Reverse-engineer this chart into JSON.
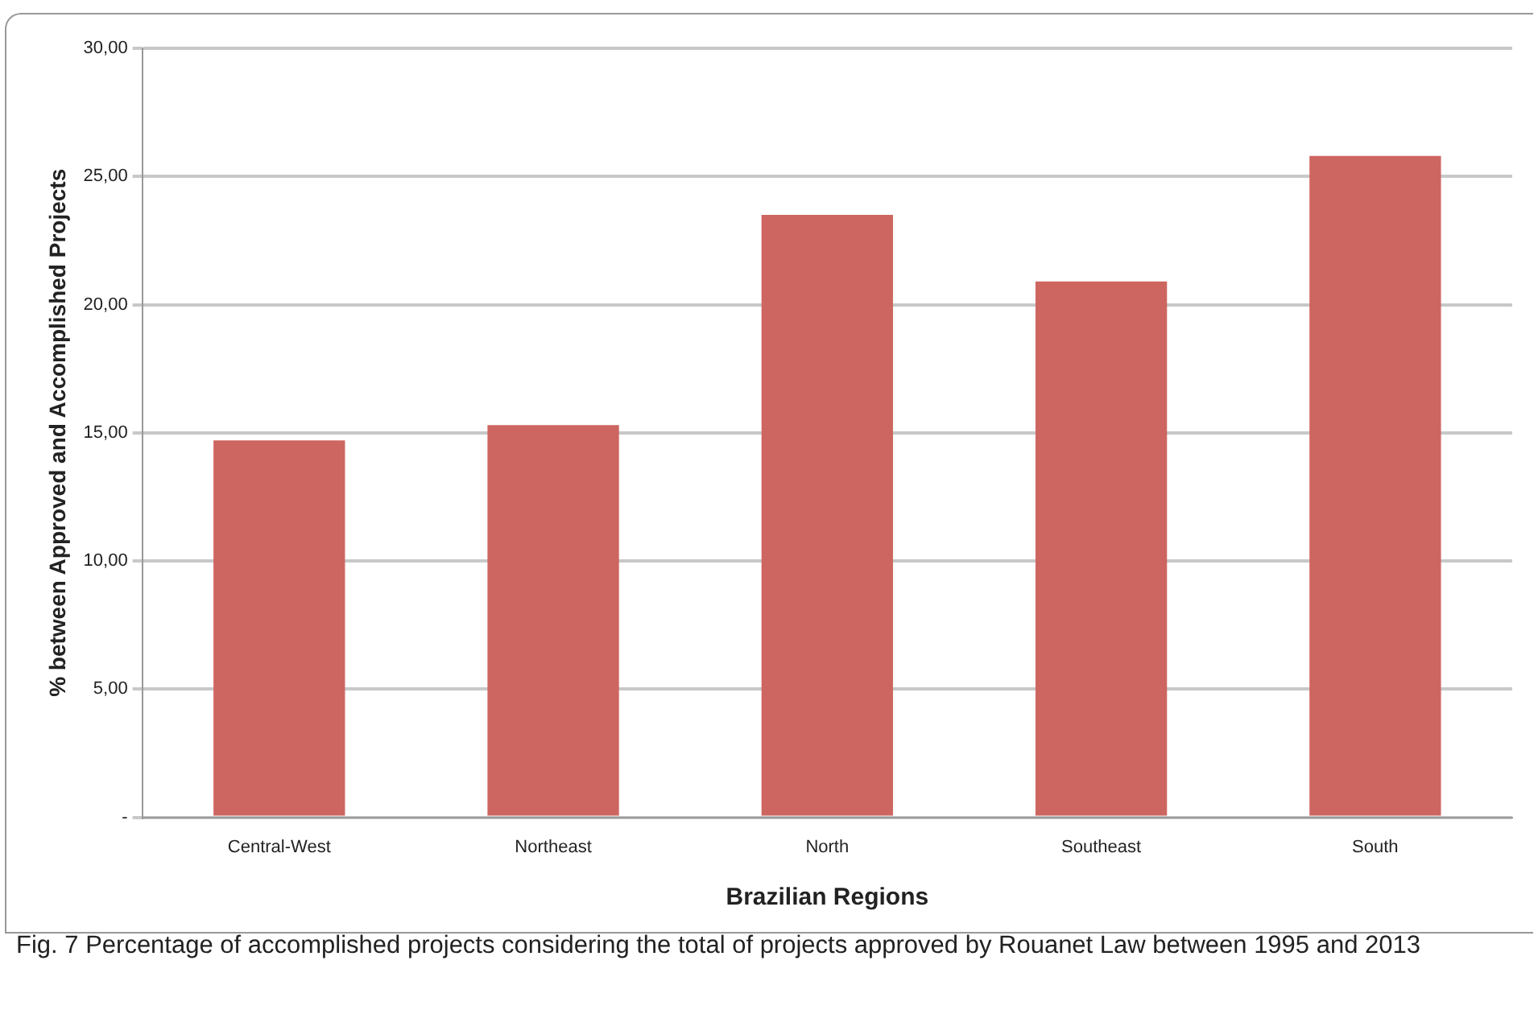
{
  "chart_data": {
    "type": "bar",
    "xlabel": "Brazilian Regions",
    "ylabel": "% between Approved and Accomplished Projects",
    "categories": [
      "Central-West",
      "Northeast",
      "North",
      "Southeast",
      "South"
    ],
    "values": [
      14.7,
      15.3,
      23.5,
      20.9,
      25.8
    ],
    "color": "#cd6660",
    "ylim": [
      0,
      30
    ],
    "yticks": [
      {
        "value": 0,
        "label": "-"
      },
      {
        "value": 5,
        "label": "5,00"
      },
      {
        "value": 10,
        "label": "10,00"
      },
      {
        "value": 15,
        "label": "15,00"
      },
      {
        "value": 20,
        "label": "20,00"
      },
      {
        "value": 25,
        "label": "25,00"
      },
      {
        "value": 30,
        "label": "30,00"
      }
    ],
    "grid": "y",
    "legend": false,
    "annotations": [
      "Fig. 7  Percentage of accomplished projects considering the total of projects approved by Rouanet Law between 1995 and 2013"
    ]
  }
}
